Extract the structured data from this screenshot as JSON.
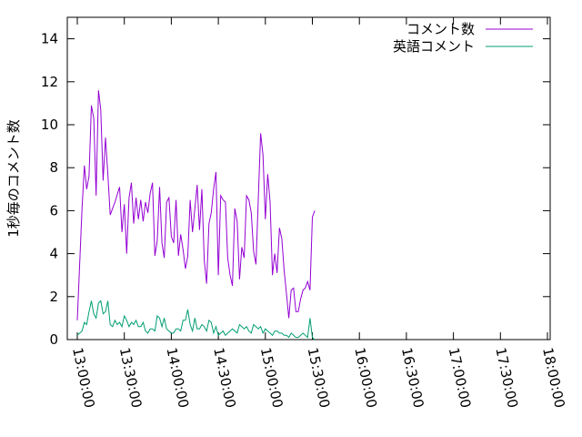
{
  "chart_data": {
    "type": "line",
    "ylabel": "1秒毎のコメント数",
    "xlabel": "",
    "ylim": [
      0,
      15
    ],
    "xlim": [
      "13:00:00",
      "18:00:00"
    ],
    "y_ticks": [
      "0",
      "2",
      "4",
      "6",
      "8",
      "10",
      "12",
      "14"
    ],
    "x_ticks": [
      "13:00:00",
      "13:30:00",
      "14:00:00",
      "14:30:00",
      "15:00:00",
      "15:30:00",
      "16:00:00",
      "16:30:00",
      "17:00:00",
      "17:30:00",
      "18:00:00"
    ],
    "grid": false,
    "legend_position": "top-right",
    "series": [
      {
        "name": "コメント数",
        "color": "#9400d3",
        "values": [
          [
            0,
            0.9
          ],
          [
            2,
            6.1
          ],
          [
            3,
            8.1
          ],
          [
            4,
            7.0
          ],
          [
            5,
            7.6
          ],
          [
            6,
            10.9
          ],
          [
            7,
            10.3
          ],
          [
            8,
            6.7
          ],
          [
            9,
            11.6
          ],
          [
            10,
            10.7
          ],
          [
            11,
            7.4
          ],
          [
            12,
            9.4
          ],
          [
            13,
            7.7
          ],
          [
            14,
            5.8
          ],
          [
            16,
            6.4
          ],
          [
            18,
            7.1
          ],
          [
            19,
            5.0
          ],
          [
            20,
            6.3
          ],
          [
            21,
            4.0
          ],
          [
            22,
            6.6
          ],
          [
            23,
            7.3
          ],
          [
            24,
            5.4
          ],
          [
            25,
            6.6
          ],
          [
            26,
            5.6
          ],
          [
            27,
            6.5
          ],
          [
            28,
            5.5
          ],
          [
            29,
            6.4
          ],
          [
            30,
            5.9
          ],
          [
            31,
            6.8
          ],
          [
            32,
            7.3
          ],
          [
            33,
            3.9
          ],
          [
            34,
            4.6
          ],
          [
            35,
            7.1
          ],
          [
            36,
            4.5
          ],
          [
            37,
            3.8
          ],
          [
            38,
            6.4
          ],
          [
            39,
            6.6
          ],
          [
            40,
            4.8
          ],
          [
            41,
            4.5
          ],
          [
            42,
            6.5
          ],
          [
            43,
            3.9
          ],
          [
            44,
            4.9
          ],
          [
            45,
            4.2
          ],
          [
            46,
            3.3
          ],
          [
            47,
            3.9
          ],
          [
            48,
            6.5
          ],
          [
            49,
            5.0
          ],
          [
            50,
            6.1
          ],
          [
            51,
            7.2
          ],
          [
            52,
            5.1
          ],
          [
            53,
            7.0
          ],
          [
            54,
            3.7
          ],
          [
            55,
            2.6
          ],
          [
            56,
            5.4
          ],
          [
            57,
            5.9
          ],
          [
            58,
            7.0
          ],
          [
            59,
            7.8
          ],
          [
            60,
            3.0
          ],
          [
            61,
            6.7
          ],
          [
            62,
            6.5
          ],
          [
            63,
            6.4
          ],
          [
            64,
            3.8
          ],
          [
            65,
            3.0
          ],
          [
            66,
            2.5
          ],
          [
            67,
            6.1
          ],
          [
            68,
            5.5
          ],
          [
            69,
            2.8
          ],
          [
            70,
            4.3
          ],
          [
            71,
            3.8
          ],
          [
            72,
            6.7
          ],
          [
            73,
            6.5
          ],
          [
            74,
            5.9
          ],
          [
            75,
            4.1
          ],
          [
            76,
            3.5
          ],
          [
            77,
            6.5
          ],
          [
            78,
            9.6
          ],
          [
            79,
            8.6
          ],
          [
            80,
            5.6
          ],
          [
            81,
            7.7
          ],
          [
            82,
            6.4
          ],
          [
            83,
            3.0
          ],
          [
            84,
            4.0
          ],
          [
            85,
            3.1
          ],
          [
            86,
            5.2
          ],
          [
            87,
            4.7
          ],
          [
            88,
            3.2
          ],
          [
            89,
            2.1
          ],
          [
            90,
            1.0
          ],
          [
            91,
            2.3
          ],
          [
            92,
            2.4
          ],
          [
            93,
            1.3
          ],
          [
            94,
            1.3
          ],
          [
            95,
            1.9
          ],
          [
            96,
            2.3
          ],
          [
            97,
            2.4
          ],
          [
            98,
            2.7
          ],
          [
            99,
            2.3
          ],
          [
            100,
            5.7
          ],
          [
            101,
            6.0
          ]
        ]
      },
      {
        "name": "英語コメント",
        "color": "#009e73",
        "values": [
          [
            0,
            0.2
          ],
          [
            2,
            0.4
          ],
          [
            3,
            0.8
          ],
          [
            4,
            0.7
          ],
          [
            5,
            1.3
          ],
          [
            6,
            1.8
          ],
          [
            7,
            1.2
          ],
          [
            8,
            1.0
          ],
          [
            9,
            1.7
          ],
          [
            10,
            1.8
          ],
          [
            11,
            1.2
          ],
          [
            12,
            1.3
          ],
          [
            13,
            1.8
          ],
          [
            14,
            0.7
          ],
          [
            15,
            0.6
          ],
          [
            16,
            0.9
          ],
          [
            17,
            0.7
          ],
          [
            18,
            0.8
          ],
          [
            19,
            0.6
          ],
          [
            20,
            1.1
          ],
          [
            21,
            0.9
          ],
          [
            22,
            0.6
          ],
          [
            23,
            0.8
          ],
          [
            24,
            0.7
          ],
          [
            25,
            0.9
          ],
          [
            26,
            0.6
          ],
          [
            27,
            0.6
          ],
          [
            28,
            0.8
          ],
          [
            29,
            0.4
          ],
          [
            30,
            0.3
          ],
          [
            31,
            0.5
          ],
          [
            32,
            0.5
          ],
          [
            33,
            0.4
          ],
          [
            34,
            1.1
          ],
          [
            35,
            1.0
          ],
          [
            36,
            0.6
          ],
          [
            37,
            1.0
          ],
          [
            38,
            0.5
          ],
          [
            39,
            0.4
          ],
          [
            40,
            0.3
          ],
          [
            41,
            0.3
          ],
          [
            42,
            0.5
          ],
          [
            43,
            0.5
          ],
          [
            44,
            0.4
          ],
          [
            45,
            0.9
          ],
          [
            46,
            0.9
          ],
          [
            47,
            1.4
          ],
          [
            48,
            0.7
          ],
          [
            49,
            0.4
          ],
          [
            50,
            1.0
          ],
          [
            51,
            0.5
          ],
          [
            52,
            0.5
          ],
          [
            53,
            0.7
          ],
          [
            54,
            0.6
          ],
          [
            55,
            0.4
          ],
          [
            56,
            0.9
          ],
          [
            57,
            0.8
          ],
          [
            58,
            0.3
          ],
          [
            59,
            0.6
          ],
          [
            60,
            0.2
          ],
          [
            61,
            0.3
          ],
          [
            62,
            0.4
          ],
          [
            63,
            0.2
          ],
          [
            64,
            0.3
          ],
          [
            65,
            0.4
          ],
          [
            66,
            0.5
          ],
          [
            67,
            0.4
          ],
          [
            68,
            0.3
          ],
          [
            69,
            0.7
          ],
          [
            70,
            0.6
          ],
          [
            71,
            0.5
          ],
          [
            72,
            0.6
          ],
          [
            73,
            0.4
          ],
          [
            74,
            0.3
          ],
          [
            75,
            0.7
          ],
          [
            76,
            0.6
          ],
          [
            77,
            0.5
          ],
          [
            78,
            0.6
          ],
          [
            79,
            0.3
          ],
          [
            80,
            0.5
          ],
          [
            81,
            0.4
          ],
          [
            82,
            0.3
          ],
          [
            83,
            0.2
          ],
          [
            84,
            0.4
          ],
          [
            85,
            0.4
          ],
          [
            86,
            0.3
          ],
          [
            87,
            0.3
          ],
          [
            88,
            0.2
          ],
          [
            89,
            0.2
          ],
          [
            90,
            0.1
          ],
          [
            91,
            0.3
          ],
          [
            92,
            0.2
          ],
          [
            93,
            0.1
          ],
          [
            94,
            0.1
          ],
          [
            95,
            0.2
          ],
          [
            96,
            0.3
          ],
          [
            97,
            0.2
          ],
          [
            98,
            0.1
          ],
          [
            99,
            1.0
          ],
          [
            100,
            0.1
          ],
          [
            101,
            0.0
          ]
        ]
      }
    ]
  }
}
